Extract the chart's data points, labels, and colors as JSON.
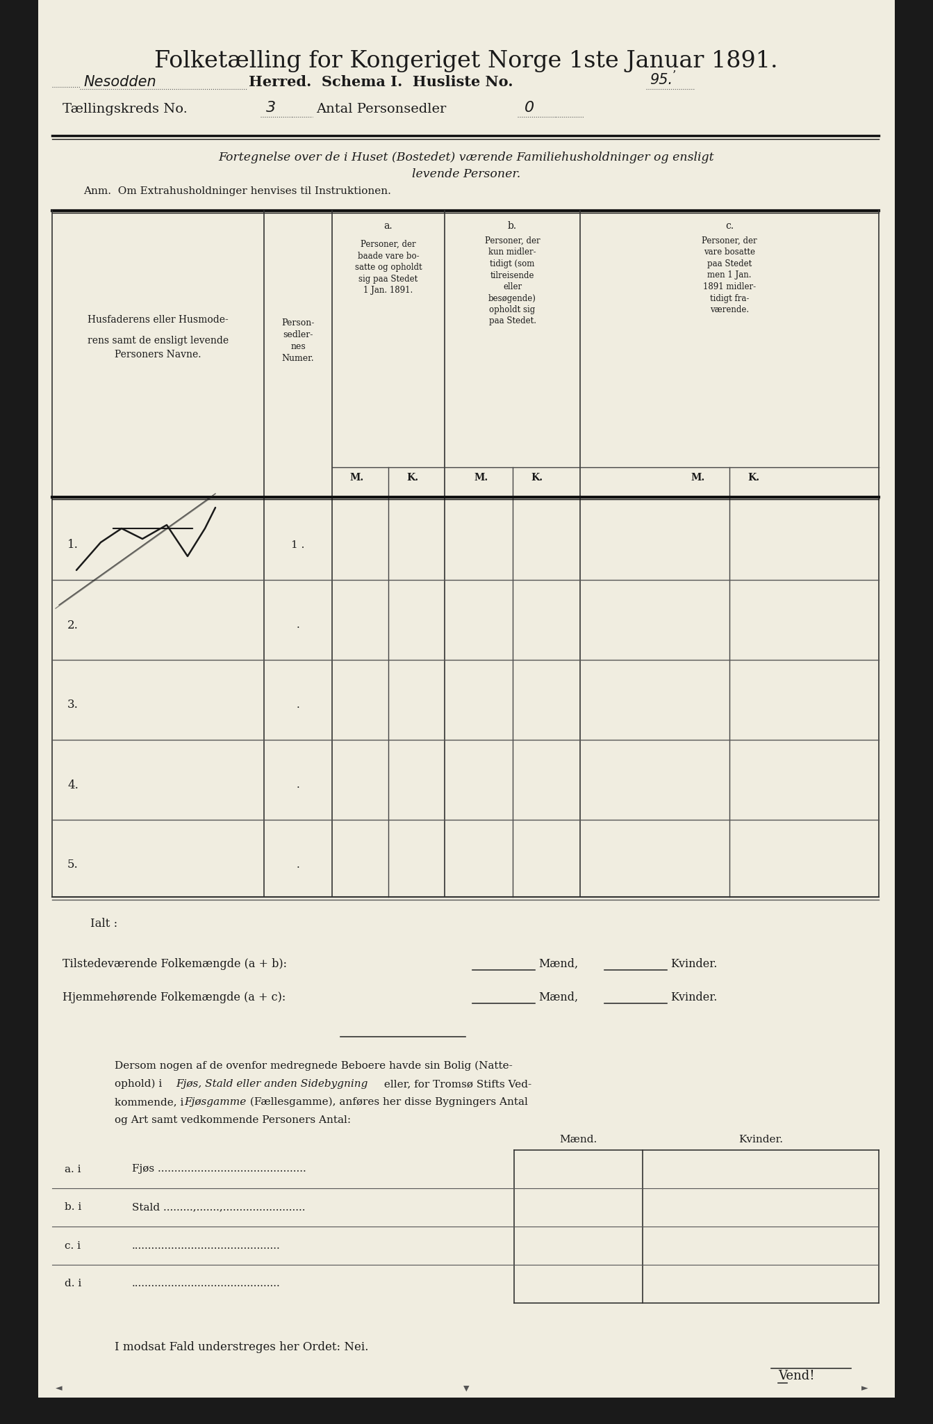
{
  "bg_color": "#f0ede0",
  "page_bg": "#e8e4d4",
  "text_color": "#1a1a1a",
  "title": "Folketælling for Kongeriget Norge 1ste Januar 1891.",
  "line2_handwritten": "Nesodden",
  "line2_printed": "Herred.  Schema I.  Husliste No.",
  "line2_number": "95.",
  "line3_printed": "Tællingskreds No.",
  "line3_number": "3",
  "line3_mid": "Antal Personsedler",
  "line3_number2": "0",
  "italic_line1": "Fortegnelse over de i Huset (Bostedet) værende Familiehusholdninger og ensligt",
  "italic_line2": "levende Personer.",
  "anm_line": "Anm.  Om Extrahusholdninger henvises til Instruktionen.",
  "col_header_main_l1": "Husfaderens eller Husmode-",
  "col_header_main_l2": "rens samt de ensligt levende",
  "col_header_main_l3": "Personers Navne.",
  "col_header_personsedler": "Person-\nsedler-\nnes\nNumer.",
  "col_a_header": "a.",
  "col_a_text": "Personer, der\nbaade vare bo-\nsatte og opholdt\nsig paa Stedet\n1 Jan. 1891.",
  "col_b_header": "b.",
  "col_b_text": "Personer, der\nkun midler-\ntidigt (som\ntilreisende\neller\nbesøgende)\nopholdt sig\npaa Stedet.",
  "col_c_header": "c.",
  "col_c_text": "Personer, der\nvare bosatte\npaa Stedet\nmen 1 Jan.\n1891 midler-\ntidigt fra-\nværende.",
  "mk_headers": [
    "M.",
    "K.",
    "M.",
    "K.",
    "M.",
    "K."
  ],
  "row_numbers": [
    "1.",
    "2.",
    "3.",
    "4.",
    "5."
  ],
  "row1_personsedler": "1 .",
  "row2_personsedler": ".",
  "row3_personsedler": ".",
  "row4_personsedler": ".",
  "row5_personsedler": ".",
  "ialt_label": "Ialt :",
  "tilstede_line1": "Tilstedeværende Folkemængde (a + b):",
  "tilstede_line2": "Mænd,",
  "tilstede_line3": "Kvinder.",
  "hjemme_line1": "Hjemmehørende Folkemængde (a + c):",
  "hjemme_line2": "Mænd,",
  "hjemme_line3": "Kvinder.",
  "dersom_text_l1": "Dersom nogen af de ovenfor medregnede Beboere havde sin Bolig (Natte-",
  "dersom_text_l2": "ophold) i Fjøs, Stald eller anden Sidebygning eller, for Tromsø Stifts Ved-",
  "dersom_text_l3": "kommende, i Fjøsgamme (Fællesgamme), anføres her disse Bygningers Antal",
  "dersom_text_l4": "og Art samt vedkommende Personers Antal:",
  "dersom_italic1": "Fjøs, Stald eller anden Sidebygning",
  "dersom_italic2": "Fjøsgamme",
  "maend_header": "Mænd.",
  "kvinder_header": "Kvinder.",
  "row_a_label": "a. i",
  "row_a_text": "Fjøs .............................................",
  "row_b_label": "b. i",
  "row_b_text": "Stald .........,.......,.........................",
  "row_c_label": "c. i",
  "row_c_text": ".............................................",
  "row_d_label": "d. i",
  "row_d_text": ".............................................",
  "imodsat_line": "I modsat Fald understreges her Ordet: Nei.",
  "vend_label": "Vend!"
}
